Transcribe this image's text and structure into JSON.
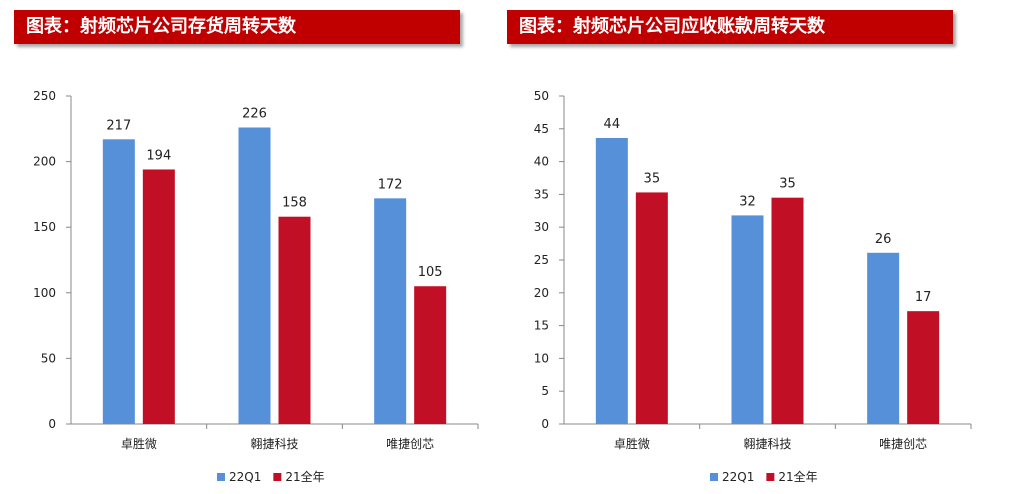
{
  "colors": {
    "series_1": "#5590d8",
    "series_2": "#c10f25",
    "title_bar": "#c00000",
    "axis": "#888888"
  },
  "charts": [
    {
      "title": "图表：射频芯片公司存货周转天数",
      "chart_data": {
        "type": "bar",
        "categories": [
          "卓胜微",
          "翱捷科技",
          "唯捷创芯"
        ],
        "series": [
          {
            "name": "22Q1",
            "values": [
              217,
              226,
              172
            ]
          },
          {
            "name": "21全年",
            "values": [
              194,
              158,
              105
            ]
          }
        ],
        "yticks": [
          "0",
          "50",
          "100",
          "150",
          "200",
          "250"
        ],
        "ylim": [
          0,
          250
        ],
        "legend": "bottom",
        "grid": false
      }
    },
    {
      "title": "图表：射频芯片公司应收账款周转天数",
      "chart_data": {
        "type": "bar",
        "categories": [
          "卓胜微",
          "翱捷科技",
          "唯捷创芯"
        ],
        "series": [
          {
            "name": "22Q1",
            "values": [
              43.6,
              31.8,
              26.1
            ]
          },
          {
            "name": "21全年",
            "values": [
              35.3,
              34.5,
              17.2
            ]
          }
        ],
        "data_labels": [
          [
            "44",
            "32",
            "26"
          ],
          [
            "35",
            "35",
            "17"
          ]
        ],
        "yticks": [
          "0",
          "5",
          "10",
          "15",
          "20",
          "25",
          "30",
          "35",
          "40",
          "45",
          "50"
        ],
        "ylim": [
          0,
          50
        ],
        "legend": "bottom",
        "grid": false
      }
    }
  ]
}
